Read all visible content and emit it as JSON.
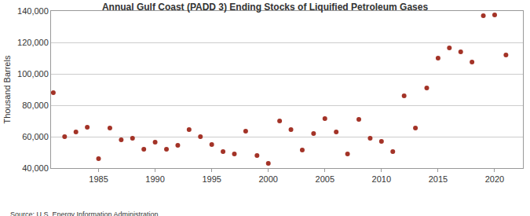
{
  "chart_data": {
    "type": "scatter",
    "title": "Annual Gulf Coast (PADD 3) Ending Stocks of Liquified Petroleum Gases",
    "y_label": "Thousand Barrels",
    "annotations": [
      "Source: U.S. Energy Information Administration"
    ],
    "x": [
      1981,
      1982,
      1983,
      1984,
      1985,
      1986,
      1987,
      1988,
      1989,
      1990,
      1991,
      1992,
      1993,
      1994,
      1995,
      1996,
      1997,
      1998,
      1999,
      2000,
      2001,
      2002,
      2003,
      2004,
      2005,
      2006,
      2007,
      2008,
      2009,
      2010,
      2011,
      2012,
      2013,
      2014,
      2015,
      2016,
      2017,
      2018,
      2019,
      2020,
      2021
    ],
    "values": [
      88000,
      60000,
      63000,
      66000,
      46000,
      65500,
      58000,
      59000,
      52000,
      56500,
      52000,
      54500,
      64500,
      60000,
      55000,
      50500,
      49000,
      63500,
      48000,
      43000,
      70000,
      64500,
      51500,
      62000,
      71500,
      63000,
      49000,
      71000,
      59000,
      57000,
      50500,
      86000,
      65500,
      91000,
      110000,
      116500,
      114000,
      107500,
      137000,
      137500,
      112000
    ],
    "color": "#a33327",
    "marker": "circle",
    "xlim": [
      1980.8,
      2022.5
    ],
    "xticks": [
      1985,
      1990,
      1995,
      2000,
      2005,
      2010,
      2015,
      2020
    ],
    "ylim": [
      40000,
      140000
    ],
    "yticks": [
      {
        "value": 40000,
        "label": "40,000"
      },
      {
        "value": 60000,
        "label": "60,000"
      },
      {
        "value": 80000,
        "label": "80,000"
      },
      {
        "value": 100000,
        "label": "100,000"
      },
      {
        "value": 120000,
        "label": "120,000"
      },
      {
        "value": 140000,
        "label": "140,000"
      }
    ],
    "grid": true
  }
}
